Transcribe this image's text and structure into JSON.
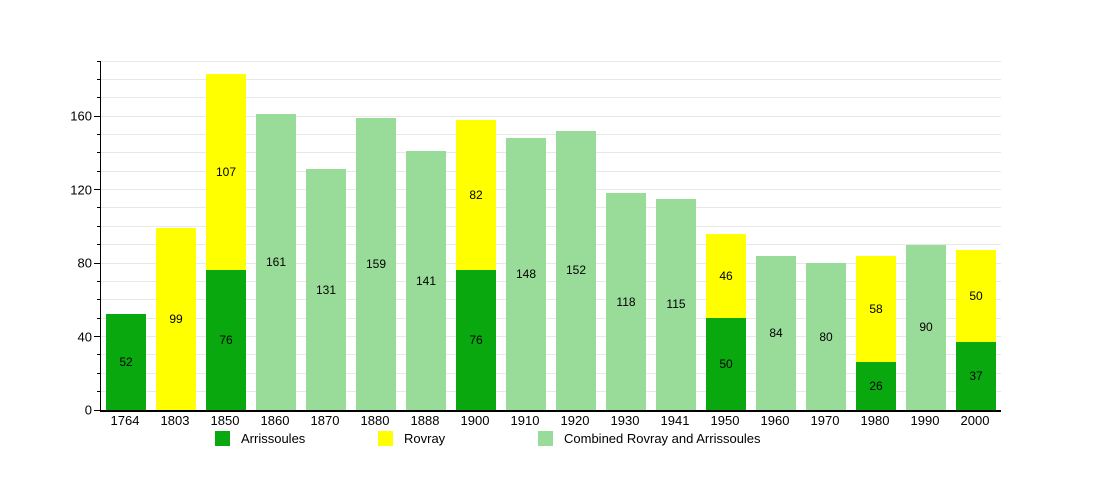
{
  "chart_data": {
    "type": "bar",
    "stacked": true,
    "title": "",
    "xlabel": "",
    "ylabel": "",
    "categories": [
      "1764",
      "1803",
      "1850",
      "1860",
      "1870",
      "1880",
      "1888",
      "1900",
      "1910",
      "1920",
      "1930",
      "1941",
      "1950",
      "1960",
      "1970",
      "1980",
      "1990",
      "2000"
    ],
    "series": [
      {
        "name": "Arrissoules",
        "color": "#09A80E",
        "values": [
          52,
          null,
          76,
          null,
          null,
          null,
          null,
          76,
          null,
          null,
          null,
          null,
          50,
          null,
          null,
          26,
          null,
          37
        ]
      },
      {
        "name": "Rovray",
        "color": "#FFFF00",
        "values": [
          null,
          99,
          107,
          null,
          null,
          null,
          null,
          82,
          null,
          null,
          null,
          null,
          46,
          null,
          null,
          58,
          null,
          50
        ]
      },
      {
        "name": "Combined Rovray and Arrissoules",
        "color": "#99DB99",
        "values": [
          null,
          null,
          null,
          161,
          131,
          159,
          141,
          null,
          148,
          152,
          118,
          115,
          null,
          84,
          80,
          null,
          90,
          null
        ]
      }
    ],
    "totals_by_year": [
      52,
      99,
      183,
      161,
      131,
      159,
      141,
      158,
      148,
      152,
      118,
      115,
      96,
      84,
      80,
      84,
      90,
      87
    ],
    "ylim": [
      0,
      190
    ],
    "yticks": [
      0,
      40,
      80,
      120,
      160
    ],
    "grid_step": 10,
    "grid": true,
    "legend_position": "bottom",
    "value_labels": "centered-in-segment",
    "colors": {
      "axis": "#000000",
      "gridline": "#E8E8E6",
      "background": "#FFFFFF",
      "label_text": "#000000"
    }
  }
}
